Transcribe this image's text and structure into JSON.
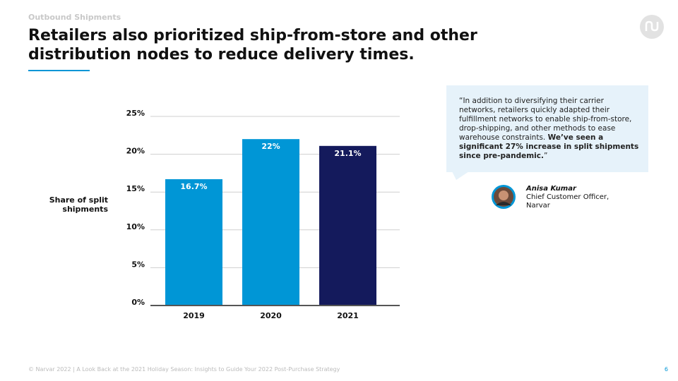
{
  "header": {
    "eyebrow": "Outbound Shipments",
    "title_lines": [
      "Retailers also prioritized ship-from-store and other",
      "distribution nodes to reduce delivery times."
    ]
  },
  "chart_data": {
    "type": "bar",
    "y_label": "Share of split shipments",
    "categories": [
      "2019",
      "2020",
      "2021"
    ],
    "values": [
      16.7,
      22,
      21.1
    ],
    "value_labels": [
      "16.7%",
      "22%",
      "21.1%"
    ],
    "colors": [
      "#0096d6",
      "#0096d6",
      "#141a5c"
    ],
    "ylim": [
      0,
      25
    ],
    "yticks": [
      {
        "value": 0,
        "label": "0%"
      },
      {
        "value": 5,
        "label": "5%"
      },
      {
        "value": 10,
        "label": "10%"
      },
      {
        "value": 15,
        "label": "15%"
      },
      {
        "value": 20,
        "label": "20%"
      },
      {
        "value": 25,
        "label": "25%"
      }
    ],
    "grid": true
  },
  "quote": {
    "text": "“In addition to diversifying their carrier networks, retailers quickly adapted their fulfillment networks to enable ship-from-store, drop-shipping, and other methods to ease warehouse constraints. ",
    "emphasis": "We’ve seen a significant 27% increase in split shipments since pre-pandemic.",
    "end": "”"
  },
  "person": {
    "name": "Anisa Kumar",
    "role_lines": [
      "Chief Customer Officer,",
      "Narvar"
    ]
  },
  "footer": {
    "text": "© Narvar 2022 | A Look Back at the 2021 Holiday Season: Insights to Guide Your 2022 Post-Purchase Strategy",
    "page": "6"
  }
}
